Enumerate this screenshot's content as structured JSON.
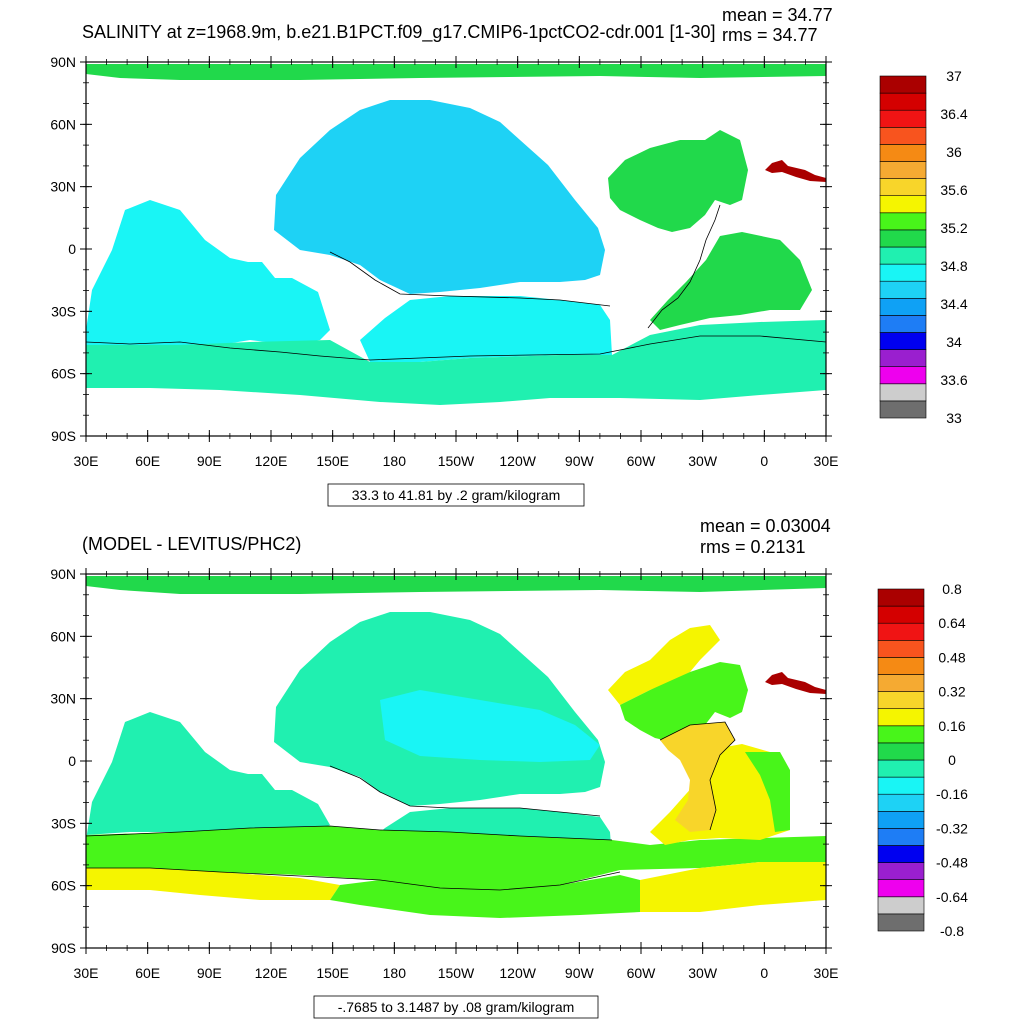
{
  "chart_data": [
    {
      "type": "map",
      "title": "SALINITY at z=1968.9m, b.e21.B1PCT.f09_g17.CMIP6-1pctCO2-cdr.001 [1-30]",
      "stats": {
        "mean": "mean = 34.77",
        "rms": "rms = 34.77"
      },
      "x_ticks": [
        "30E",
        "60E",
        "90E",
        "120E",
        "150E",
        "180",
        "150W",
        "120W",
        "90W",
        "60W",
        "30W",
        "0",
        "30E"
      ],
      "y_ticks": [
        "90N",
        "60N",
        "30N",
        "0",
        "30S",
        "60S",
        "90S"
      ],
      "contour_info": "33.3 to 41.81 by .2 gram/kilogram",
      "colorbar": {
        "colors": [
          "#6e6e6e",
          "#cdcdcd",
          "#ee00ee",
          "#9a1fcf",
          "#0000f0",
          "#1e7df5",
          "#0fa1f5",
          "#1ed2f5",
          "#19f5f5",
          "#20f0b0",
          "#21d94b",
          "#48f51a",
          "#f5f500",
          "#f8d52a",
          "#f5aa32",
          "#f58a14",
          "#f8541e",
          "#f01414",
          "#d40000",
          "#aa0000"
        ],
        "labels": [
          "37",
          "36.4",
          "36",
          "35.6",
          "35.2",
          "34.8",
          "34.4",
          "34",
          "33.6",
          "33"
        ]
      },
      "units": "gram/kilogram",
      "xlim": [
        30,
        390
      ],
      "ylim": [
        -90,
        90
      ]
    },
    {
      "type": "map",
      "title": "(MODEL - LEVITUS/PHC2)",
      "stats": {
        "mean": "mean = 0.03004",
        "rms": "rms = 0.2131"
      },
      "x_ticks": [
        "30E",
        "60E",
        "90E",
        "120E",
        "150E",
        "180",
        "150W",
        "120W",
        "90W",
        "60W",
        "30W",
        "0",
        "30E"
      ],
      "y_ticks": [
        "90N",
        "60N",
        "30N",
        "0",
        "30S",
        "60S",
        "90S"
      ],
      "contour_info": "-.7685 to 3.1487 by .08 gram/kilogram",
      "colorbar": {
        "colors": [
          "#6e6e6e",
          "#cdcdcd",
          "#ee00ee",
          "#9a1fcf",
          "#0000f0",
          "#1e7df5",
          "#0fa1f5",
          "#1ed2f5",
          "#19f5f5",
          "#20f0b0",
          "#21d94b",
          "#48f51a",
          "#f5f500",
          "#f8d52a",
          "#f5aa32",
          "#f58a14",
          "#f8541e",
          "#f01414",
          "#d40000",
          "#aa0000"
        ],
        "labels": [
          "0.8",
          "0.64",
          "0.48",
          "0.32",
          "0.16",
          "0",
          "-0.16",
          "-0.32",
          "-0.48",
          "-0.64",
          "-0.8"
        ]
      },
      "units": "gram/kilogram",
      "xlim": [
        30,
        390
      ],
      "ylim": [
        -90,
        90
      ]
    }
  ]
}
